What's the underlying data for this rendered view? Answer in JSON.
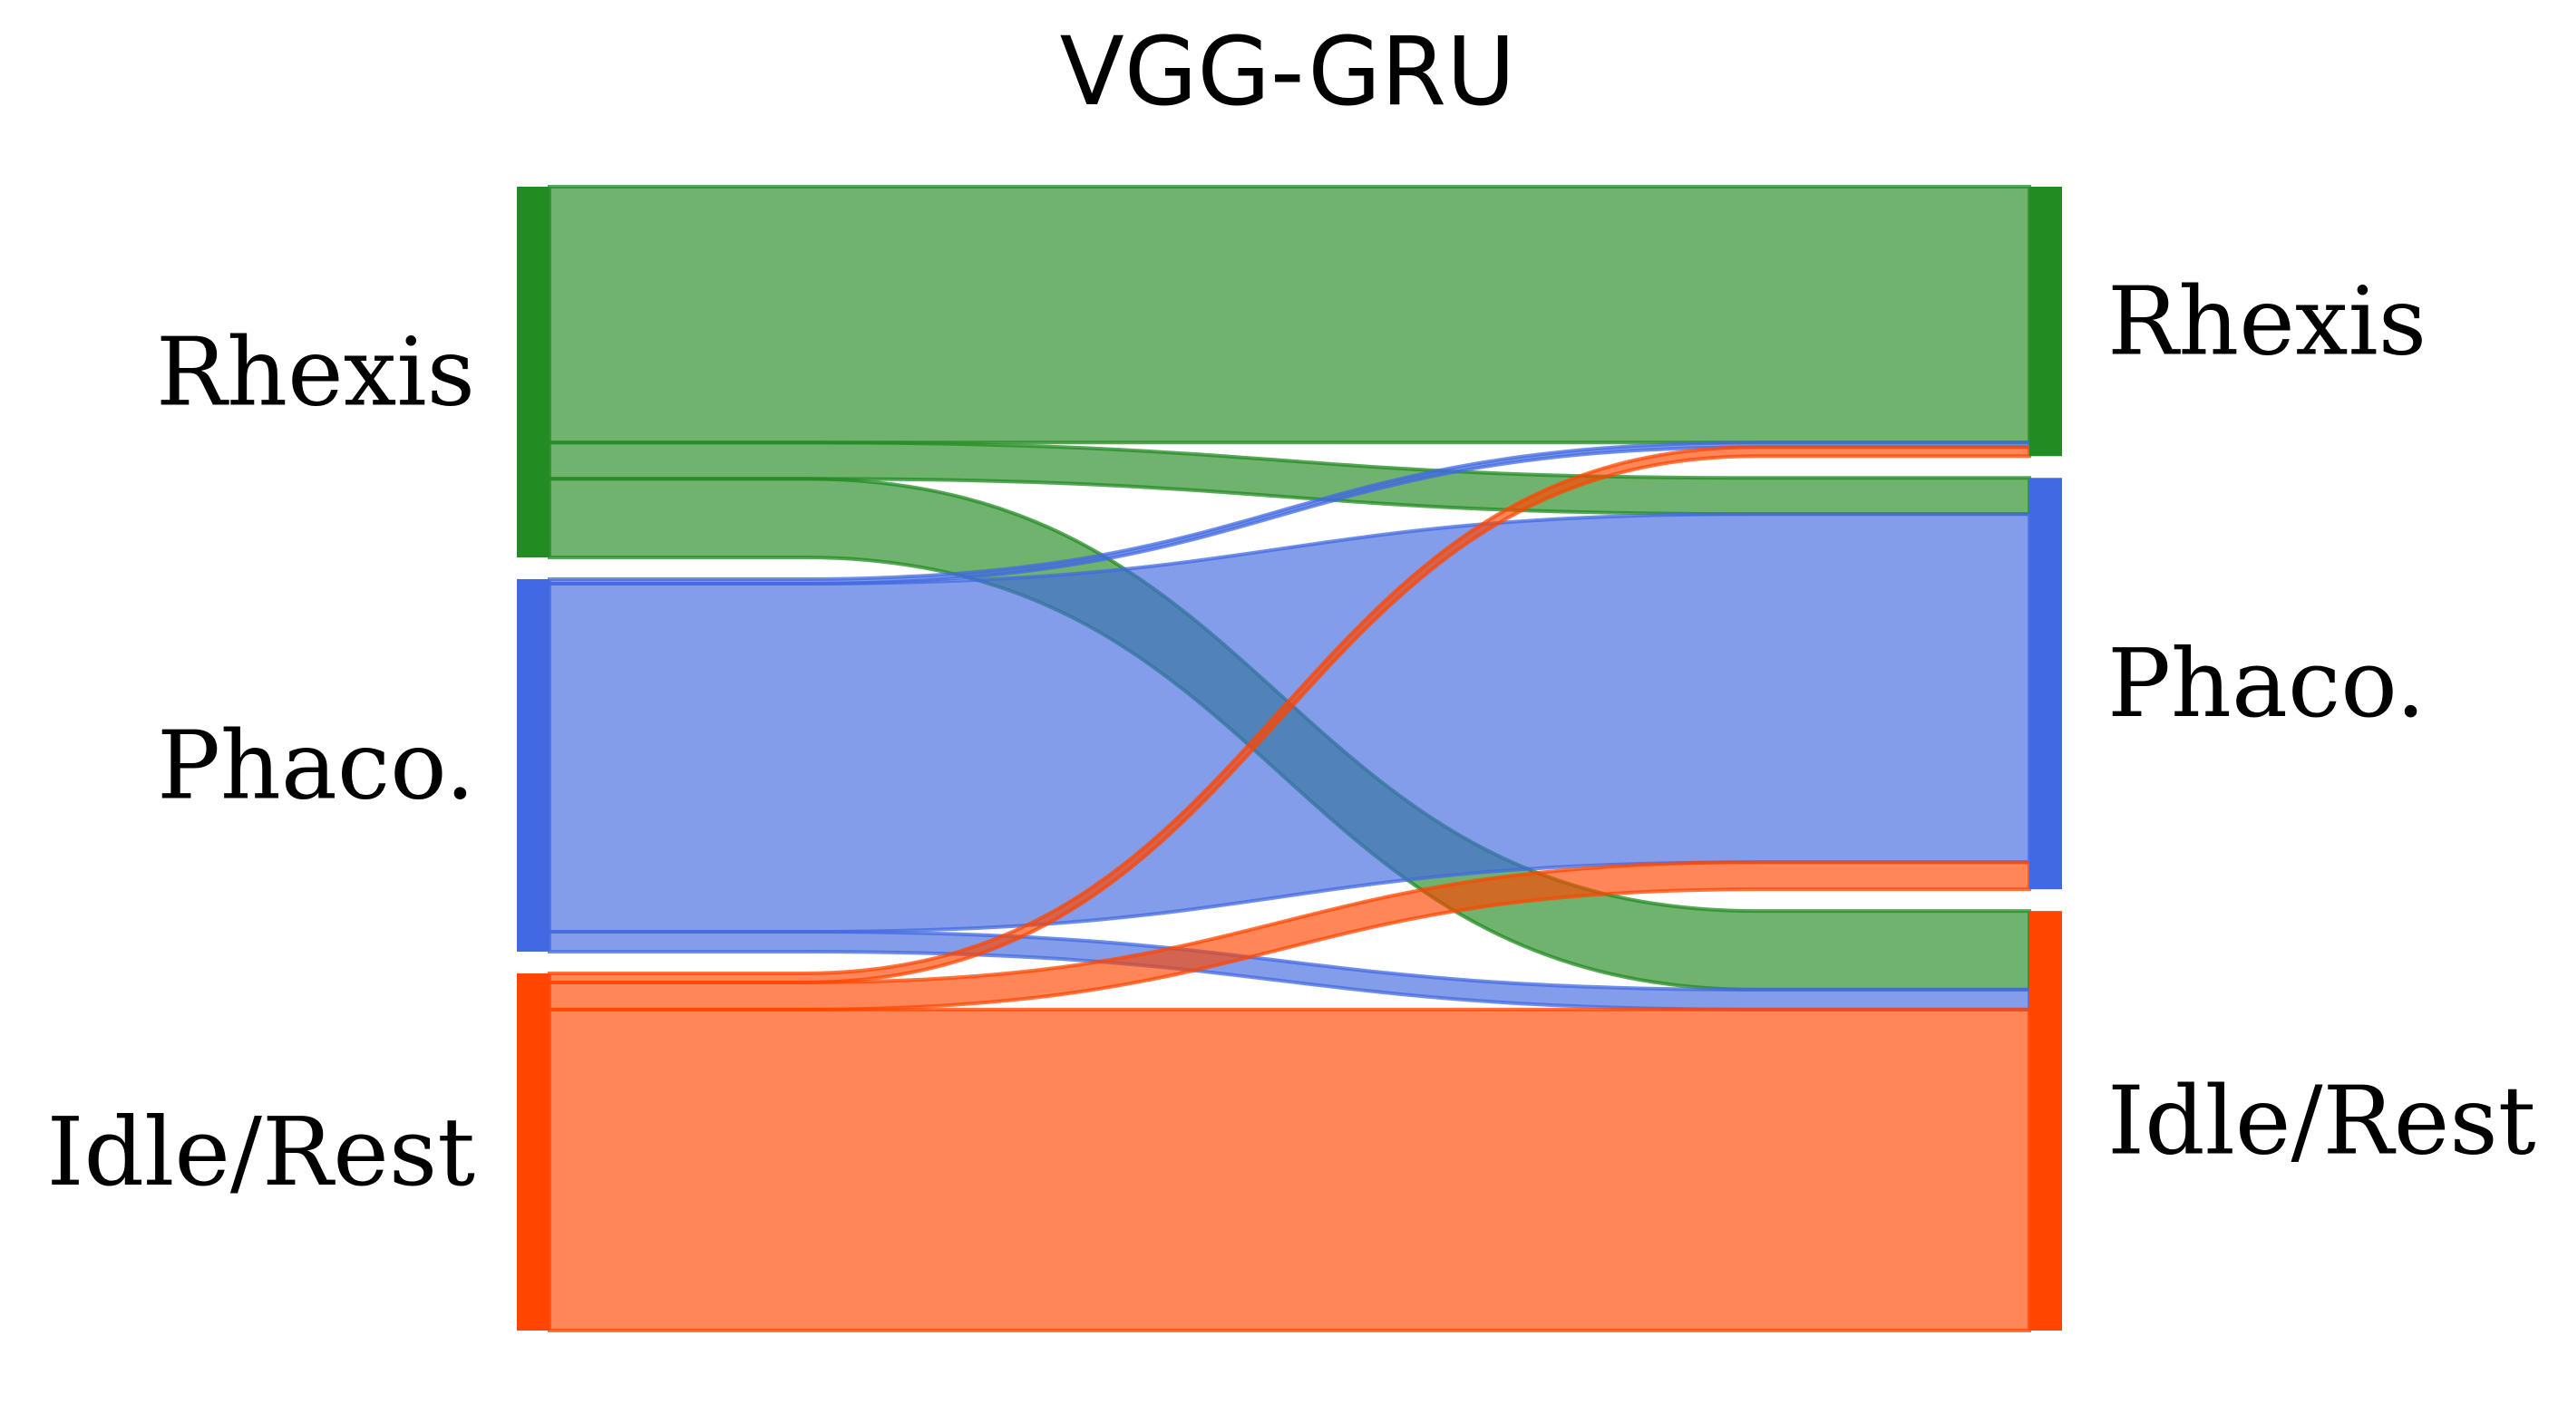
{
  "chart_data": {
    "type": "sankey",
    "title": "VGG-GRU",
    "categories": [
      "Rhexis",
      "Phaco.",
      "Idle/Rest"
    ],
    "sources": [
      {
        "name": "Rhexis",
        "color": "#228B22"
      },
      {
        "name": "Phaco.",
        "color": "#4169E1"
      },
      {
        "name": "Idle/Rest",
        "color": "#FF4500"
      }
    ],
    "targets": [
      {
        "name": "Rhexis",
        "color": "#228B22"
      },
      {
        "name": "Phaco.",
        "color": "#4169E1"
      },
      {
        "name": "Idle/Rest",
        "color": "#FF4500"
      }
    ],
    "flows": [
      {
        "from": "Rhexis",
        "to": "Rhexis",
        "value": 0.283
      },
      {
        "from": "Rhexis",
        "to": "Phaco.",
        "value": 0.04
      },
      {
        "from": "Rhexis",
        "to": "Idle/Rest",
        "value": 0.087
      },
      {
        "from": "Phaco.",
        "to": "Rhexis",
        "value": 0.005
      },
      {
        "from": "Phaco.",
        "to": "Phaco.",
        "value": 0.385
      },
      {
        "from": "Phaco.",
        "to": "Idle/Rest",
        "value": 0.022
      },
      {
        "from": "Idle/Rest",
        "to": "Rhexis",
        "value": 0.01
      },
      {
        "from": "Idle/Rest",
        "to": "Phaco.",
        "value": 0.03
      },
      {
        "from": "Idle/Rest",
        "to": "Idle/Rest",
        "value": 0.355
      }
    ],
    "link_opacity": 0.65
  }
}
